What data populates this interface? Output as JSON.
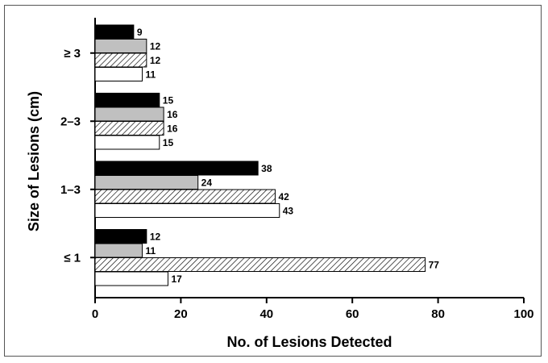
{
  "chart_data": {
    "type": "bar",
    "orientation": "horizontal",
    "xlabel": "No. of Lesions Detected",
    "ylabel": "Size of Lesions (cm)",
    "xlim": [
      0,
      100
    ],
    "x_ticks": [
      "0",
      "20",
      "40",
      "60",
      "80",
      "100"
    ],
    "categories": [
      "≥ 3",
      "2–3",
      "1–3",
      "≤ 1"
    ],
    "grid": false,
    "legend": "none",
    "series": [
      {
        "fill": "#000000",
        "pattern": "solid",
        "values": [
          9,
          15,
          38,
          12
        ]
      },
      {
        "fill": "#c0c0c0",
        "pattern": "solid",
        "values": [
          12,
          16,
          24,
          11
        ]
      },
      {
        "fill": "#ffffff",
        "pattern": "diagonal-hatch",
        "values": [
          12,
          16,
          42,
          77
        ]
      },
      {
        "fill": "#ffffff",
        "pattern": "solid",
        "values": [
          11,
          15,
          43,
          17
        ]
      }
    ],
    "data_labels": true
  }
}
